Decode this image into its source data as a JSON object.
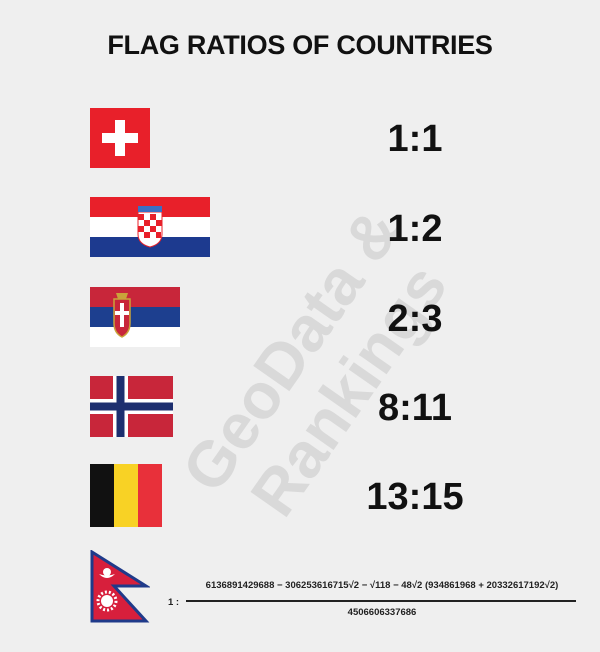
{
  "title": "FLAG RATIOS OF COUNTRIES",
  "watermark": "GeoData & Rankings",
  "flags": [
    {
      "country": "Switzerland",
      "ratio": "1:1"
    },
    {
      "country": "Croatia",
      "ratio": "1:2"
    },
    {
      "country": "Serbia",
      "ratio": "2:3"
    },
    {
      "country": "Norway",
      "ratio": "8:11"
    },
    {
      "country": "Belgium",
      "ratio": "13:15"
    },
    {
      "country": "Nepal",
      "ratio_prefix": "1 :",
      "numerator": "6136891429688 − 306253616715√2 − √118 − 48√2 (934861968 + 20332617192√2)",
      "denominator": "4506606337686"
    }
  ],
  "colors": {
    "red": "#e8202a",
    "blue": "#1d3a8f",
    "white": "#ffffff",
    "black": "#111111",
    "yellow": "#f8d225",
    "nepal_blue": "#1f3a8a",
    "nepal_red": "#d71f3c"
  }
}
